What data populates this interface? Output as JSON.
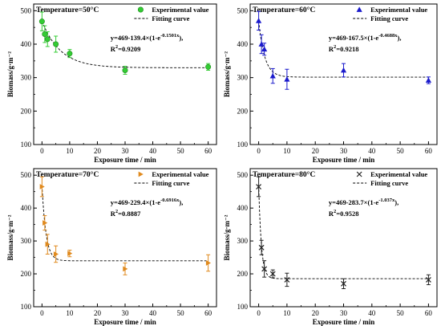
{
  "chart_data": [
    {
      "type": "scatter",
      "title": "Temperature=50°C",
      "xlabel": "Exposure time / min",
      "ylabel": "Biomass/g·m⁻²",
      "xticks": [
        "0",
        "10",
        "20",
        "30",
        "40",
        "50",
        "60"
      ],
      "yticks": [
        "100",
        "200",
        "300",
        "400",
        "500"
      ],
      "xlim": [
        -3,
        63
      ],
      "ylim": [
        100,
        520
      ],
      "grid": false,
      "legend": "top-right",
      "color": "#33cc33",
      "marker": "circle",
      "series": [
        {
          "name": "Experimental value",
          "x": [
            0,
            1,
            2,
            5,
            10,
            30,
            60
          ],
          "y": [
            468,
            430,
            415,
            400,
            372,
            322,
            332
          ],
          "err": [
            28,
            25,
            22,
            24,
            12,
            12,
            10
          ]
        }
      ],
      "fit": {
        "name": "Fitting curve",
        "a": 469,
        "b": 139.4,
        "k": 0.1501
      },
      "equation": {
        "prefix": "y=469-139.4×(1-e",
        "exponent": "-0.1501x",
        "suffix": "),",
        "r2_prefix": "R",
        "r2_sup": "2",
        "r2_value": "=0.9209"
      }
    },
    {
      "type": "scatter",
      "title": "Temperature=60°C",
      "xlabel": "Exposure time / min",
      "ylabel": "Biomass/g·m⁻²",
      "xticks": [
        "0",
        "10",
        "20",
        "30",
        "40",
        "50",
        "60"
      ],
      "yticks": [
        "100",
        "200",
        "300",
        "400",
        "500"
      ],
      "xlim": [
        -3,
        63
      ],
      "ylim": [
        100,
        520
      ],
      "grid": false,
      "legend": "top-right",
      "color": "#1a1acc",
      "marker": "triangle",
      "series": [
        {
          "name": "Experimental value",
          "x": [
            0,
            1,
            2,
            5,
            10,
            30,
            60
          ],
          "y": [
            470,
            400,
            385,
            305,
            295,
            322,
            292
          ],
          "err": [
            28,
            28,
            18,
            22,
            30,
            20,
            10
          ]
        }
      ],
      "fit": {
        "name": "Fitting curve",
        "a": 469,
        "b": 167.5,
        "k": 0.4688
      },
      "equation": {
        "prefix": "y=469-167.5×(1-e",
        "exponent": "-0.4688x",
        "suffix": "),",
        "r2_prefix": "R",
        "r2_sup": "2",
        "r2_value": "=0.9218"
      }
    },
    {
      "type": "scatter",
      "title": "Temperature=70°C",
      "xlabel": "Exposure time / min",
      "ylabel": "Biomass/g·m⁻²",
      "xticks": [
        "0",
        "10",
        "20",
        "30",
        "40",
        "50",
        "60"
      ],
      "yticks": [
        "100",
        "200",
        "300",
        "400",
        "500"
      ],
      "xlim": [
        -3,
        63
      ],
      "ylim": [
        100,
        520
      ],
      "grid": false,
      "legend": "top-right",
      "color": "#e08a1e",
      "marker": "triangle-right",
      "series": [
        {
          "name": "Experimental value",
          "x": [
            0,
            1,
            2,
            5,
            10,
            30,
            60
          ],
          "y": [
            465,
            355,
            290,
            260,
            262,
            215,
            233
          ],
          "err": [
            30,
            22,
            30,
            25,
            10,
            18,
            25
          ]
        }
      ],
      "fit": {
        "name": "Fitting curve",
        "a": 469,
        "b": 229.4,
        "k": 0.6916
      },
      "equation": {
        "prefix": "y=469-229.4×(1-e",
        "exponent": "-0.6916x",
        "suffix": "),",
        "r2_prefix": "R",
        "r2_sup": "2",
        "r2_value": "=0.8887"
      }
    },
    {
      "type": "scatter",
      "title": "Temperature=80°C",
      "xlabel": "Exposure time / min",
      "ylabel": "Biomass/g·m⁻²",
      "xticks": [
        "0",
        "10",
        "20",
        "30",
        "40",
        "50",
        "60"
      ],
      "yticks": [
        "100",
        "200",
        "300",
        "400",
        "500"
      ],
      "xlim": [
        -3,
        63
      ],
      "ylim": [
        100,
        520
      ],
      "grid": false,
      "legend": "top-right",
      "color": "#222222",
      "marker": "x",
      "series": [
        {
          "name": "Experimental value",
          "x": [
            0,
            1,
            2,
            5,
            10,
            30,
            60
          ],
          "y": [
            465,
            280,
            215,
            200,
            182,
            170,
            182
          ],
          "err": [
            30,
            22,
            25,
            12,
            20,
            15,
            15
          ]
        }
      ],
      "fit": {
        "name": "Fitting curve",
        "a": 469,
        "b": 283.7,
        "k": 1.037
      },
      "equation": {
        "prefix": "y=469-283.7×(1-e",
        "exponent": "-1.037x",
        "suffix": "),",
        "r2_prefix": "R",
        "r2_sup": "2",
        "r2_value": "=0.9528"
      }
    }
  ]
}
